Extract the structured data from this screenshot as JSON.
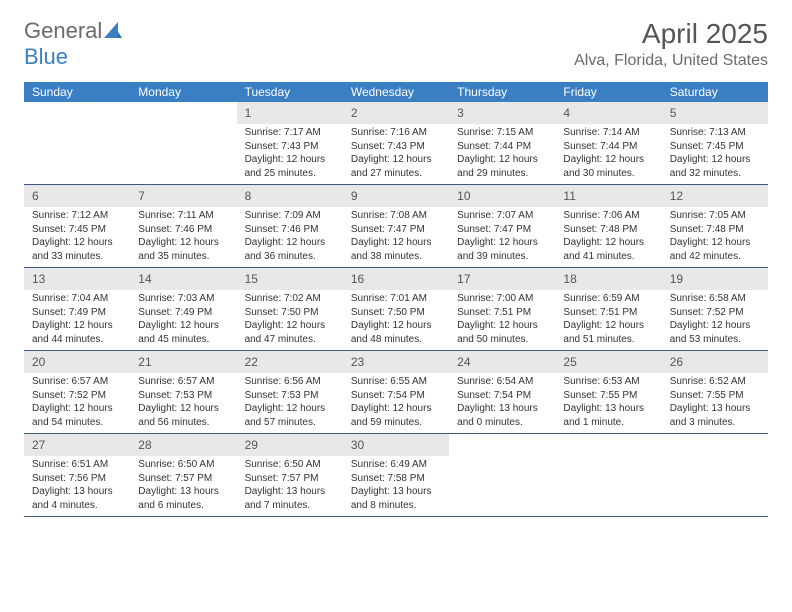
{
  "brand": {
    "part1": "General",
    "part2": "Blue"
  },
  "title": "April 2025",
  "location": "Alva, Florida, United States",
  "colors": {
    "header_bg": "#3a7fc4",
    "header_text": "#ffffff",
    "daynum_bg": "#e8e8e8",
    "week_border": "#3a5a80",
    "text": "#333333",
    "muted": "#6a6a6a"
  },
  "day_names": [
    "Sunday",
    "Monday",
    "Tuesday",
    "Wednesday",
    "Thursday",
    "Friday",
    "Saturday"
  ],
  "weeks": [
    [
      null,
      null,
      {
        "n": 1,
        "sr": "7:17 AM",
        "ss": "7:43 PM",
        "dl": "12 hours and 25 minutes."
      },
      {
        "n": 2,
        "sr": "7:16 AM",
        "ss": "7:43 PM",
        "dl": "12 hours and 27 minutes."
      },
      {
        "n": 3,
        "sr": "7:15 AM",
        "ss": "7:44 PM",
        "dl": "12 hours and 29 minutes."
      },
      {
        "n": 4,
        "sr": "7:14 AM",
        "ss": "7:44 PM",
        "dl": "12 hours and 30 minutes."
      },
      {
        "n": 5,
        "sr": "7:13 AM",
        "ss": "7:45 PM",
        "dl": "12 hours and 32 minutes."
      }
    ],
    [
      {
        "n": 6,
        "sr": "7:12 AM",
        "ss": "7:45 PM",
        "dl": "12 hours and 33 minutes."
      },
      {
        "n": 7,
        "sr": "7:11 AM",
        "ss": "7:46 PM",
        "dl": "12 hours and 35 minutes."
      },
      {
        "n": 8,
        "sr": "7:09 AM",
        "ss": "7:46 PM",
        "dl": "12 hours and 36 minutes."
      },
      {
        "n": 9,
        "sr": "7:08 AM",
        "ss": "7:47 PM",
        "dl": "12 hours and 38 minutes."
      },
      {
        "n": 10,
        "sr": "7:07 AM",
        "ss": "7:47 PM",
        "dl": "12 hours and 39 minutes."
      },
      {
        "n": 11,
        "sr": "7:06 AM",
        "ss": "7:48 PM",
        "dl": "12 hours and 41 minutes."
      },
      {
        "n": 12,
        "sr": "7:05 AM",
        "ss": "7:48 PM",
        "dl": "12 hours and 42 minutes."
      }
    ],
    [
      {
        "n": 13,
        "sr": "7:04 AM",
        "ss": "7:49 PM",
        "dl": "12 hours and 44 minutes."
      },
      {
        "n": 14,
        "sr": "7:03 AM",
        "ss": "7:49 PM",
        "dl": "12 hours and 45 minutes."
      },
      {
        "n": 15,
        "sr": "7:02 AM",
        "ss": "7:50 PM",
        "dl": "12 hours and 47 minutes."
      },
      {
        "n": 16,
        "sr": "7:01 AM",
        "ss": "7:50 PM",
        "dl": "12 hours and 48 minutes."
      },
      {
        "n": 17,
        "sr": "7:00 AM",
        "ss": "7:51 PM",
        "dl": "12 hours and 50 minutes."
      },
      {
        "n": 18,
        "sr": "6:59 AM",
        "ss": "7:51 PM",
        "dl": "12 hours and 51 minutes."
      },
      {
        "n": 19,
        "sr": "6:58 AM",
        "ss": "7:52 PM",
        "dl": "12 hours and 53 minutes."
      }
    ],
    [
      {
        "n": 20,
        "sr": "6:57 AM",
        "ss": "7:52 PM",
        "dl": "12 hours and 54 minutes."
      },
      {
        "n": 21,
        "sr": "6:57 AM",
        "ss": "7:53 PM",
        "dl": "12 hours and 56 minutes."
      },
      {
        "n": 22,
        "sr": "6:56 AM",
        "ss": "7:53 PM",
        "dl": "12 hours and 57 minutes."
      },
      {
        "n": 23,
        "sr": "6:55 AM",
        "ss": "7:54 PM",
        "dl": "12 hours and 59 minutes."
      },
      {
        "n": 24,
        "sr": "6:54 AM",
        "ss": "7:54 PM",
        "dl": "13 hours and 0 minutes."
      },
      {
        "n": 25,
        "sr": "6:53 AM",
        "ss": "7:55 PM",
        "dl": "13 hours and 1 minute."
      },
      {
        "n": 26,
        "sr": "6:52 AM",
        "ss": "7:55 PM",
        "dl": "13 hours and 3 minutes."
      }
    ],
    [
      {
        "n": 27,
        "sr": "6:51 AM",
        "ss": "7:56 PM",
        "dl": "13 hours and 4 minutes."
      },
      {
        "n": 28,
        "sr": "6:50 AM",
        "ss": "7:57 PM",
        "dl": "13 hours and 6 minutes."
      },
      {
        "n": 29,
        "sr": "6:50 AM",
        "ss": "7:57 PM",
        "dl": "13 hours and 7 minutes."
      },
      {
        "n": 30,
        "sr": "6:49 AM",
        "ss": "7:58 PM",
        "dl": "13 hours and 8 minutes."
      },
      null,
      null,
      null
    ]
  ],
  "labels": {
    "sunrise": "Sunrise:",
    "sunset": "Sunset:",
    "daylight": "Daylight:"
  }
}
